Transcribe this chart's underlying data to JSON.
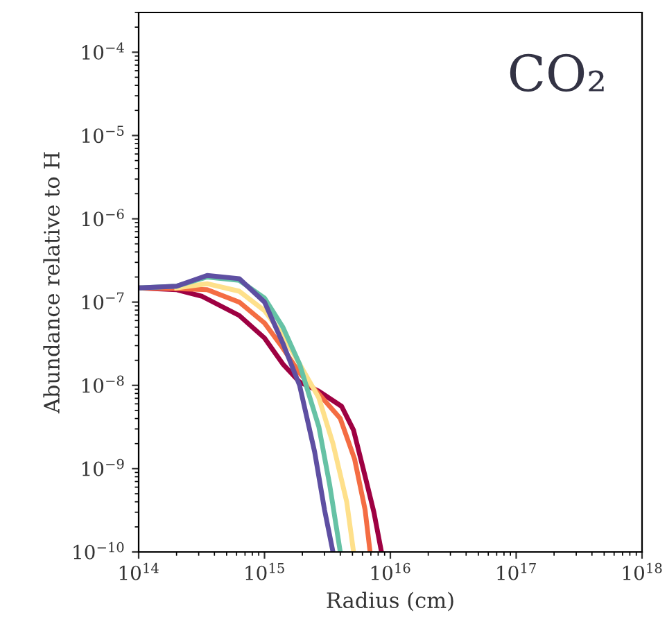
{
  "chart_data": {
    "type": "line",
    "xlabel": "Radius (cm)",
    "ylabel": "Abundance relative to H",
    "annotations": [
      "CO₂"
    ],
    "log": "xy",
    "grid": false,
    "legend": false,
    "marker": "none",
    "line_style": "solid",
    "xlim": [
      100000000000000.0,
      1e+18
    ],
    "ylim": [
      1e-10,
      0.0003
    ],
    "xticks": [
      {
        "value": 100000000000000.0,
        "label": "10$^{14}$"
      },
      {
        "value": 1000000000000000.0,
        "label": "10$^{15}$"
      },
      {
        "value": 1e+16,
        "label": "10$^{16}$"
      },
      {
        "value": 1e+17,
        "label": "10$^{17}$"
      },
      {
        "value": 1e+18,
        "label": "10$^{18}$"
      }
    ],
    "yticks": [
      {
        "value": 1e-10,
        "label": "10$^{−10}$"
      },
      {
        "value": 1e-09,
        "label": "10$^{−9}$"
      },
      {
        "value": 1e-08,
        "label": "10$^{−8}$"
      },
      {
        "value": 1e-07,
        "label": "10$^{−7}$"
      },
      {
        "value": 1e-06,
        "label": "10$^{−6}$"
      },
      {
        "value": 1e-05,
        "label": "10$^{−5}$"
      },
      {
        "value": 0.0001,
        "label": "10$^{−4}$"
      }
    ],
    "series": [
      {
        "color": "#9e0142",
        "x": [
          100000000000000.0,
          200000000000000.0,
          320000000000000.0,
          630000000000000.0,
          1000000000000000.0,
          1400000000000000.0,
          1900000000000000.0,
          2700000000000000.0,
          4100000000000000.0,
          5100000000000000.0,
          6300000000000000.0,
          7400000000000000.0,
          8500000000000000.0
        ],
        "values": [
          1.48e-07,
          1.41e-07,
          1.17e-07,
          6.9e-08,
          3.7e-08,
          1.8e-08,
          1.1e-08,
          8.5e-09,
          5.6e-09,
          2.9e-09,
          8.1e-10,
          3e-10,
          1e-10
        ]
      },
      {
        "color": "#f46d43",
        "x": [
          100000000000000.0,
          200000000000000.0,
          350000000000000.0,
          630000000000000.0,
          1000000000000000.0,
          1400000000000000.0,
          1900000000000000.0,
          2700000000000000.0,
          4000000000000000.0,
          5200000000000000.0,
          6300000000000000.0,
          6900000000000000.0
        ],
        "values": [
          1.48e-07,
          1.45e-07,
          1.41e-07,
          1e-07,
          5.6e-08,
          2.8e-08,
          1.4e-08,
          7.9e-09,
          4e-09,
          1.3e-09,
          3.2e-10,
          1e-10
        ]
      },
      {
        "color": "#fee08b",
        "x": [
          200000000000000.0,
          350000000000000.0,
          630000000000000.0,
          1000000000000000.0,
          1400000000000000.0,
          1900000000000000.0,
          2700000000000000.0,
          3500000000000000.0,
          4500000000000000.0,
          5100000000000000.0
        ],
        "values": [
          1.48e-07,
          1.66e-07,
          1.35e-07,
          7.9e-08,
          4e-08,
          1.8e-08,
          7.1e-09,
          2e-09,
          4e-10,
          1e-10
        ]
      },
      {
        "color": "#66c2a5",
        "x": [
          100000000000000.0,
          200000000000000.0,
          350000000000000.0,
          630000000000000.0,
          1000000000000000.0,
          1400000000000000.0,
          1900000000000000.0,
          2700000000000000.0,
          3300000000000000.0,
          4000000000000000.0
        ],
        "values": [
          1.48e-07,
          1.55e-07,
          2e-07,
          1.82e-07,
          1.12e-07,
          5e-08,
          1.8e-08,
          3.2e-09,
          6.3e-10,
          1e-10
        ]
      },
      {
        "color": "#5e4fa2",
        "x": [
          100000000000000.0,
          200000000000000.0,
          350000000000000.0,
          630000000000000.0,
          1000000000000000.0,
          1400000000000000.0,
          1900000000000000.0,
          2500000000000000.0,
          3000000000000000.0,
          3500000000000000.0
        ],
        "values": [
          1.48e-07,
          1.55e-07,
          2.09e-07,
          1.91e-07,
          1e-07,
          3.2e-08,
          1e-08,
          1.6e-09,
          3.2e-10,
          1e-10
        ]
      }
    ]
  }
}
